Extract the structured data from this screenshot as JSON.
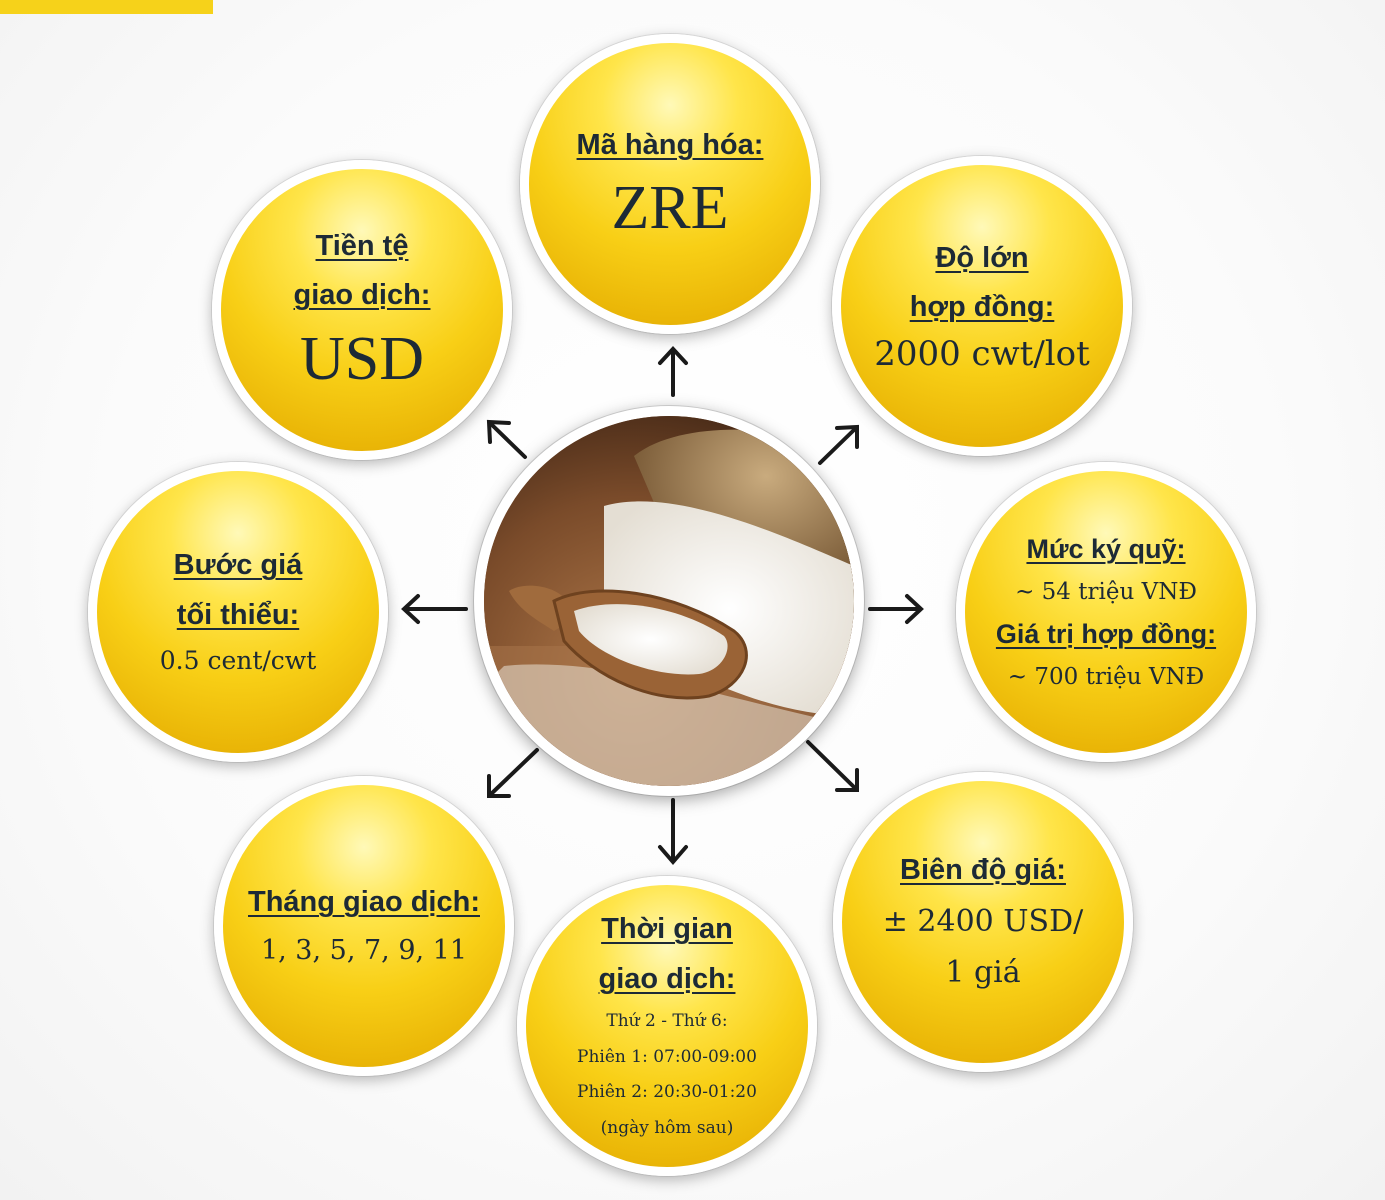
{
  "center_image": {
    "icon": "rice-scoop-photo"
  },
  "nodes": {
    "ma_hang_hoa": {
      "heading": "Mã hàng hóa:",
      "value": "ZRE"
    },
    "tien_te": {
      "heading_1": "Tiền tệ",
      "heading_2": "giao dịch:",
      "value": "USD"
    },
    "do_lon": {
      "heading_1": "Độ lớn",
      "heading_2": "hợp đồng:",
      "value": "2000 cwt/lot"
    },
    "buoc_gia": {
      "heading_1": "Bước giá",
      "heading_2": "tối thiểu:",
      "value": "0.5 cent/cwt"
    },
    "ky_quy": {
      "heading_1": "Mức ký quỹ:",
      "value_1": "~ 54 triệu VNĐ",
      "heading_2": "Giá trị hợp đồng:",
      "value_2": "~ 700 triệu VNĐ"
    },
    "thang": {
      "heading": "Tháng giao dịch:",
      "value": "1, 3, 5, 7, 9, 11"
    },
    "thoi_gian": {
      "heading_1": "Thời gian",
      "heading_2": "giao dịch:",
      "lines": [
        "Thứ 2 - Thứ 6:",
        "Phiên 1: 07:00-09:00",
        "Phiên 2: 20:30-01:20",
        "(ngày hôm sau)"
      ]
    },
    "bien_do": {
      "heading": "Biên độ giá:",
      "value_1": "± 2400 USD/",
      "value_2": "1 giá"
    }
  },
  "colors": {
    "accent": "#f6d21a",
    "text": "#1d2a36",
    "arrow": "#1a1a1a"
  }
}
